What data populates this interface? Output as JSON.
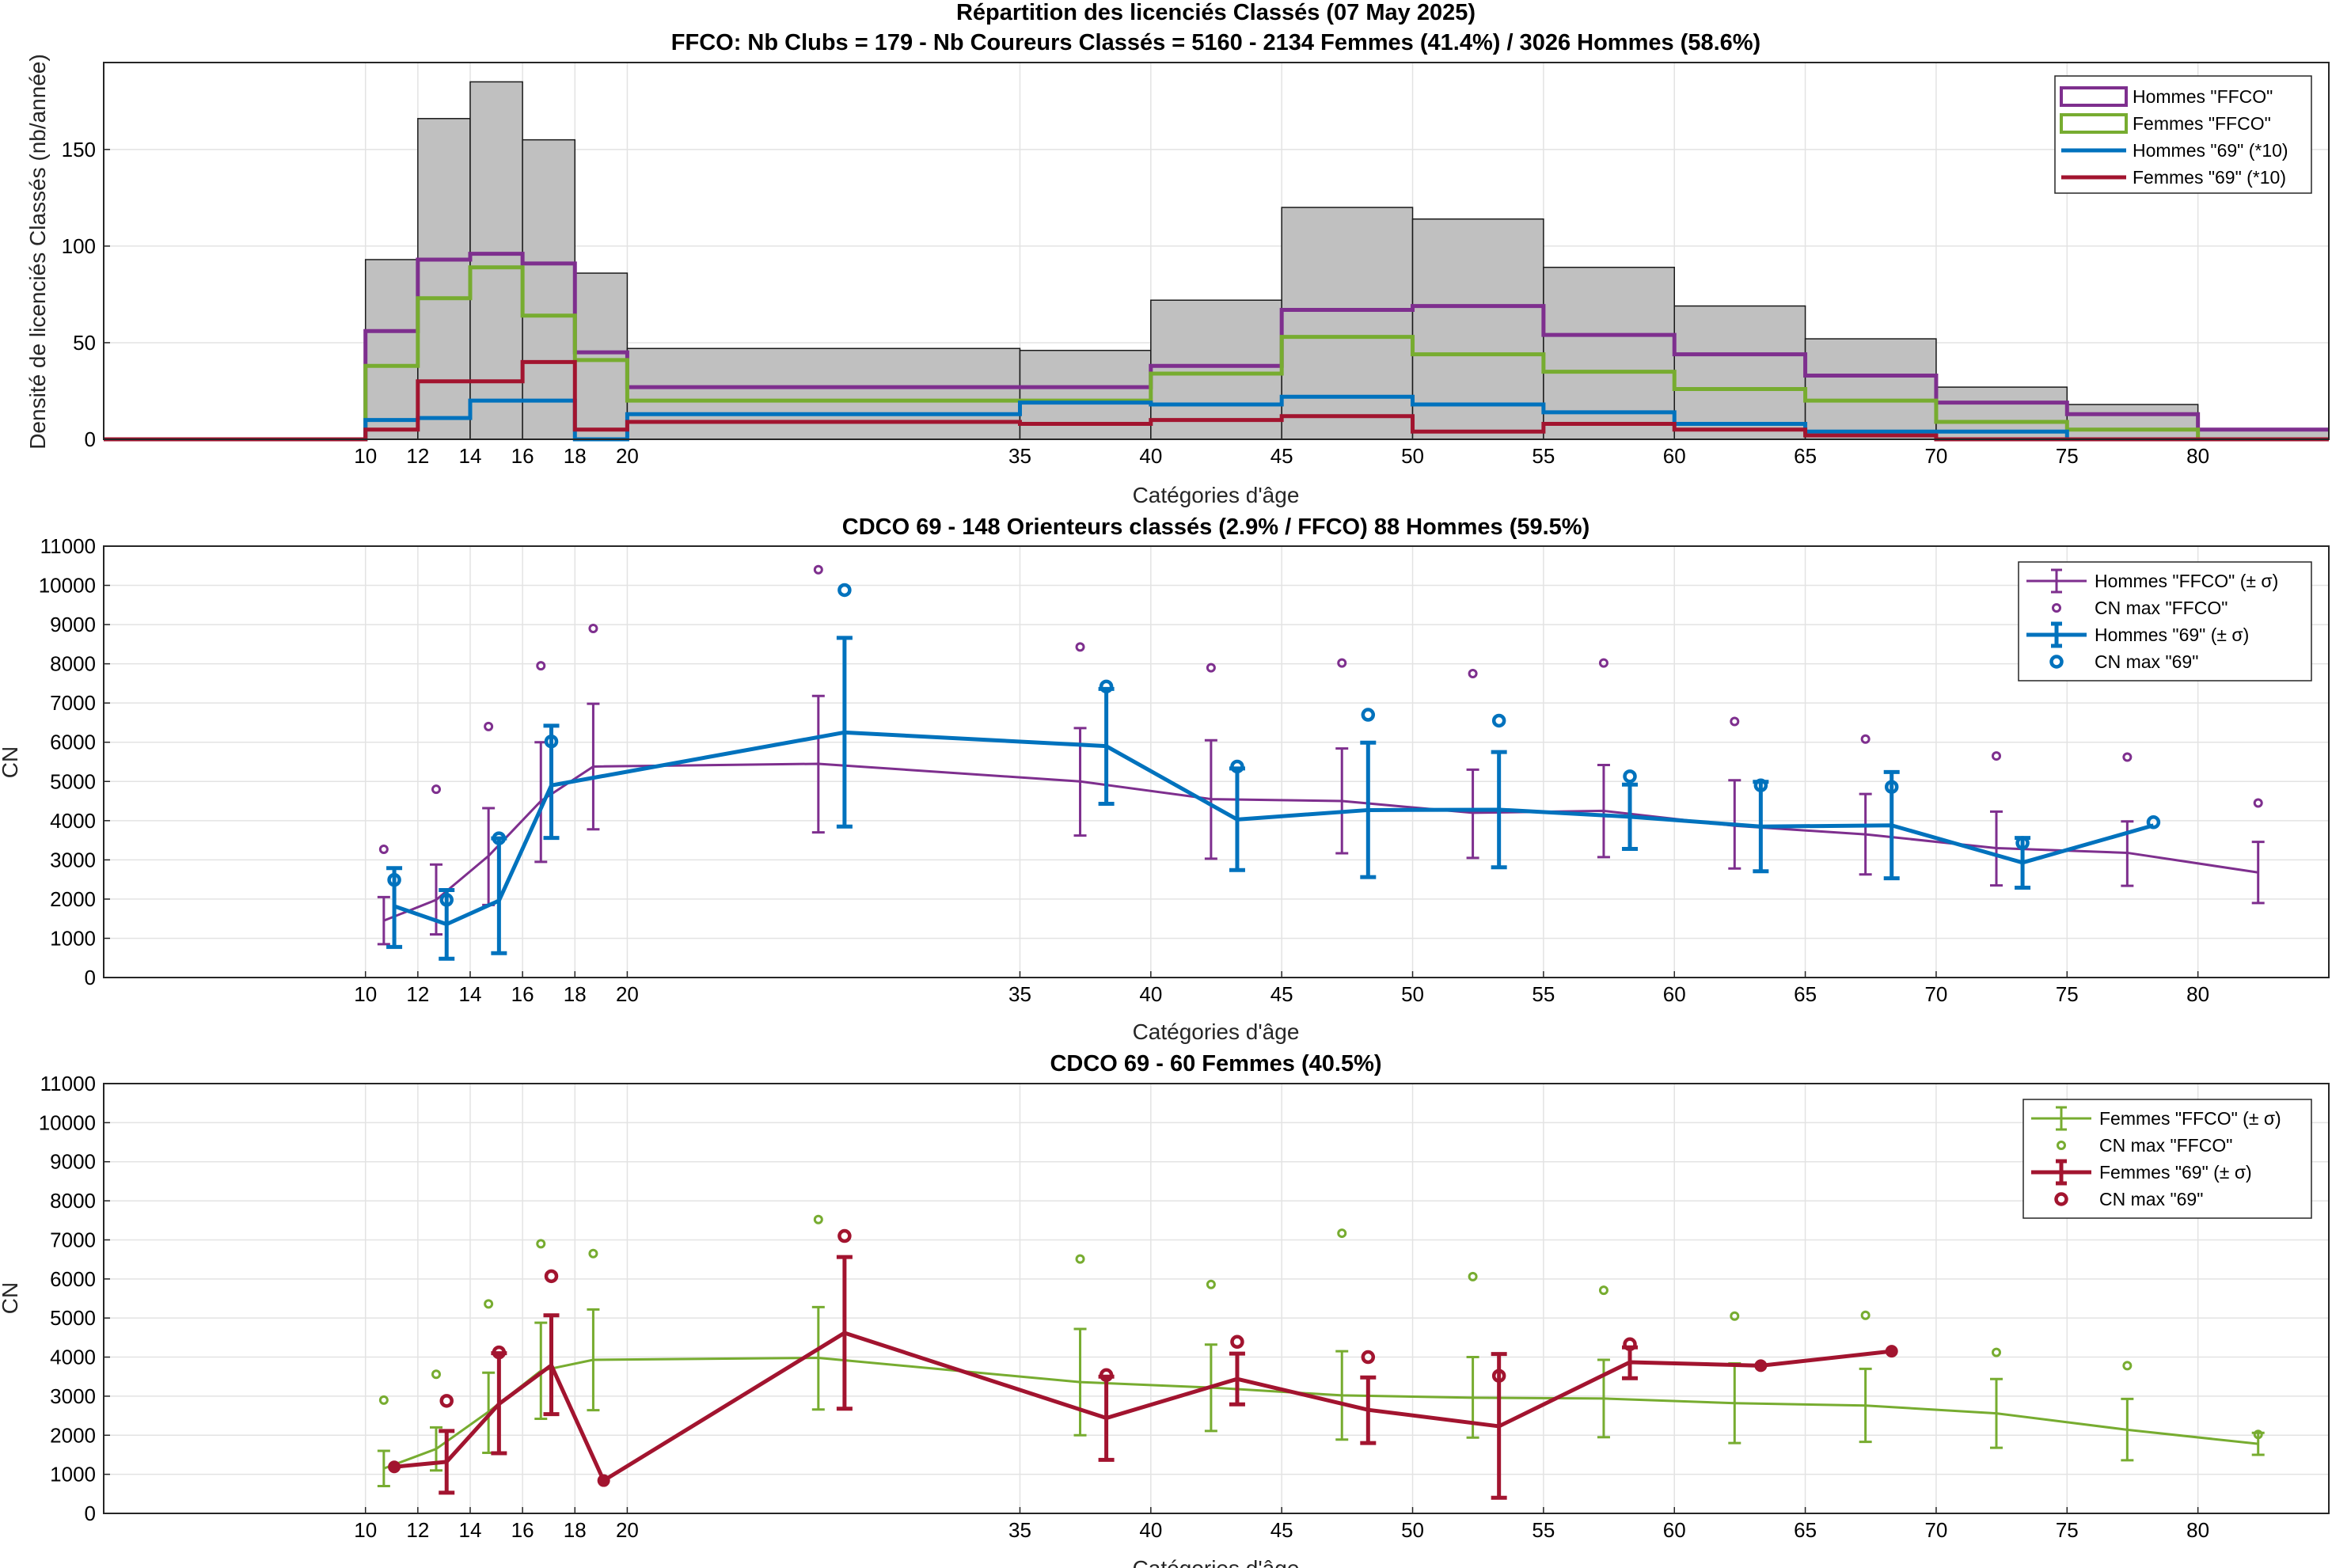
{
  "colors": {
    "purple": "#7e2f8e",
    "green": "#77ac30",
    "blue": "#0072bd",
    "red": "#a2142f",
    "grey": "#c0c0c0"
  },
  "chart_data": [
    {
      "type": "bar",
      "title": "Répartition des licenciés Classés (07 May 2025)",
      "subtitle": "FFCO: Nb Clubs = 179   -   Nb Coureurs Classés = 5160   -   2134 Femmes (41.4%) / 3026 Hommes (58.6%)",
      "xlabel": "Catégories d'âge",
      "ylabel": "Densité de licenciés Classés (nb/année)",
      "xlim": [
        0,
        85
      ],
      "ylim": [
        0,
        195
      ],
      "xticks": [
        10,
        12,
        14,
        16,
        18,
        20,
        35,
        40,
        45,
        50,
        55,
        60,
        65,
        70,
        75,
        80
      ],
      "yticks": [
        0,
        50,
        100,
        150
      ],
      "grid": true,
      "legend_position": "top-right",
      "bin_edges": [
        0,
        10,
        12,
        14,
        16,
        18,
        20,
        35,
        40,
        45,
        50,
        55,
        60,
        65,
        70,
        75,
        80,
        85
      ],
      "total": [
        0,
        93,
        166,
        185,
        155,
        86,
        47,
        46,
        72,
        120,
        114,
        89,
        69,
        52,
        27,
        18,
        5
      ],
      "series": [
        {
          "name": "Hommes \"FFCO\"",
          "color": "#7e2f8e",
          "values": [
            0,
            56,
            93,
            96,
            91,
            45,
            27,
            27,
            38,
            67,
            69,
            54,
            44,
            33,
            19,
            13,
            5
          ]
        },
        {
          "name": "Femmes \"FFCO\"",
          "color": "#77ac30",
          "values": [
            0,
            38,
            73,
            89,
            64,
            41,
            20,
            20,
            34,
            53,
            44,
            35,
            26,
            20,
            9,
            5,
            0
          ]
        },
        {
          "name": "Hommes \"69\" (*10)",
          "color": "#0072bd",
          "values": [
            0,
            10,
            11,
            20,
            20,
            0,
            13,
            19,
            18,
            22,
            18,
            14,
            8,
            4,
            4,
            0,
            0
          ]
        },
        {
          "name": "Femmes \"69\" (*10)",
          "color": "#a2142f",
          "values": [
            0,
            5,
            30,
            30,
            40,
            5,
            9,
            8,
            10,
            12,
            4,
            8,
            5,
            2,
            0,
            0,
            0
          ]
        }
      ]
    },
    {
      "type": "line",
      "title": "CDCO 69  -  148 Orienteurs classés (2.9% / FFCO)  88 Hommes (59.5%)",
      "xlabel": "Catégories d'âge",
      "ylabel": "CN",
      "xlim": [
        0,
        85
      ],
      "ylim": [
        0,
        11000
      ],
      "xticks": [
        10,
        12,
        14,
        16,
        18,
        20,
        35,
        40,
        45,
        50,
        55,
        60,
        65,
        70,
        75,
        80
      ],
      "yticks": [
        0,
        1000,
        2000,
        3000,
        4000,
        5000,
        6000,
        7000,
        8000,
        9000,
        10000,
        11000
      ],
      "grid": true,
      "legend_position": "top-right",
      "legend": [
        "Hommes \"FFCO\" (± σ)",
        "CN max \"FFCO\"",
        "Hommes \"69\" (± σ)",
        "CN max \"69\""
      ],
      "series": [
        {
          "name": "Hommes \"FFCO\" (± σ)",
          "color": "#7e2f8e",
          "x": [
            10.7,
            12.7,
            14.7,
            16.7,
            18.7,
            27.3,
            37.3,
            42.3,
            47.3,
            52.3,
            57.3,
            62.3,
            67.3,
            72.3,
            77.3,
            82.3
          ],
          "mean": [
            1450,
            1980,
            3100,
            4500,
            5380,
            5450,
            5000,
            4550,
            4500,
            4200,
            4250,
            3870,
            3650,
            3300,
            3180,
            2680
          ],
          "low": [
            850,
            1100,
            1850,
            2950,
            3780,
            3700,
            3620,
            3030,
            3170,
            3050,
            3070,
            2780,
            2630,
            2350,
            2340,
            1900
          ],
          "high": [
            2050,
            2880,
            4320,
            6000,
            6980,
            7180,
            6360,
            6050,
            5840,
            5300,
            5420,
            5030,
            4680,
            4230,
            3980,
            3460
          ],
          "cnmax": [
            3270,
            4800,
            6400,
            7950,
            8900,
            10400,
            8430,
            7900,
            8020,
            7750,
            8020,
            6530,
            6080,
            5650,
            5620,
            4450
          ]
        },
        {
          "name": "Hommes \"69\" (± σ)",
          "color": "#0072bd",
          "x": [
            11.1,
            13.1,
            15.1,
            17.1,
            28.3,
            38.3,
            43.3,
            48.3,
            53.3,
            58.3,
            63.3,
            68.3,
            73.3,
            78.3
          ],
          "mean": [
            1820,
            1360,
            1960,
            4900,
            6250,
            5900,
            4030,
            4270,
            4280,
            4100,
            3850,
            3880,
            2930,
            3880
          ],
          "low": [
            780,
            480,
            620,
            3560,
            3850,
            4430,
            2740,
            2560,
            2810,
            3280,
            2710,
            2530,
            2290,
            3880
          ],
          "high": [
            2790,
            2230,
            3550,
            6420,
            8660,
            7360,
            5330,
            5990,
            5750,
            4920,
            4990,
            5240,
            3560,
            3880
          ],
          "cnmax": [
            2490,
            1980,
            3550,
            6020,
            9880,
            7420,
            5380,
            6700,
            6550,
            5130,
            4900,
            4860,
            3430,
            3960
          ]
        }
      ]
    },
    {
      "type": "line",
      "title": "CDCO 69  -  60 Femmes (40.5%)",
      "xlabel": "Catégories d'âge",
      "ylabel": "CN",
      "xlim": [
        0,
        85
      ],
      "ylim": [
        0,
        11000
      ],
      "xticks": [
        10,
        12,
        14,
        16,
        18,
        20,
        35,
        40,
        45,
        50,
        55,
        60,
        65,
        70,
        75,
        80
      ],
      "yticks": [
        0,
        1000,
        2000,
        3000,
        4000,
        5000,
        6000,
        7000,
        8000,
        9000,
        10000,
        11000
      ],
      "grid": true,
      "legend_position": "top-right",
      "legend": [
        "Femmes \"FFCO\" (± σ)",
        "CN max \"FFCO\"",
        "Femmes \"69\" (± σ)",
        "CN max \"69\""
      ],
      "series": [
        {
          "name": "Femmes \"FFCO\" (± σ)",
          "color": "#77ac30",
          "x": [
            10.7,
            12.7,
            14.7,
            16.7,
            18.7,
            27.3,
            37.3,
            42.3,
            47.3,
            52.3,
            57.3,
            62.3,
            67.3,
            72.3,
            77.3,
            82.3
          ],
          "mean": [
            1150,
            1650,
            2600,
            3650,
            3930,
            3980,
            3360,
            3220,
            3020,
            2960,
            2940,
            2820,
            2760,
            2560,
            2140,
            1780
          ],
          "low": [
            700,
            1100,
            1550,
            2420,
            2640,
            2660,
            2000,
            2110,
            1890,
            1940,
            1950,
            1800,
            1830,
            1680,
            1360,
            1500
          ],
          "high": [
            1600,
            2200,
            3600,
            4880,
            5220,
            5280,
            4720,
            4320,
            4150,
            4000,
            3930,
            3840,
            3700,
            3440,
            2930,
            2060
          ],
          "cnmax": [
            2900,
            3560,
            5360,
            6900,
            6650,
            7520,
            6510,
            5860,
            7170,
            6060,
            5710,
            5050,
            5070,
            4120,
            3780,
            2020
          ]
        },
        {
          "name": "Femmes \"69\" (± σ)",
          "color": "#a2142f",
          "x": [
            11.1,
            13.1,
            15.1,
            17.1,
            19.1,
            28.3,
            38.3,
            43.3,
            48.3,
            53.3,
            58.3,
            63.3,
            68.3
          ],
          "mean": [
            1190,
            1320,
            2800,
            3790,
            840,
            4620,
            2440,
            3440,
            2650,
            2230,
            3870,
            3780,
            4150
          ],
          "low": [
            1190,
            530,
            1540,
            2540,
            840,
            2680,
            1370,
            2790,
            1800,
            400,
            3460,
            3780,
            4150
          ],
          "high": [
            1190,
            2110,
            4100,
            5070,
            840,
            6560,
            3500,
            4090,
            3480,
            4080,
            4250,
            3780,
            4150
          ],
          "cnmax": [
            1190,
            2880,
            4120,
            6070,
            840,
            7100,
            3540,
            4390,
            4000,
            3520,
            4330,
            3780,
            4150
          ]
        }
      ]
    }
  ]
}
